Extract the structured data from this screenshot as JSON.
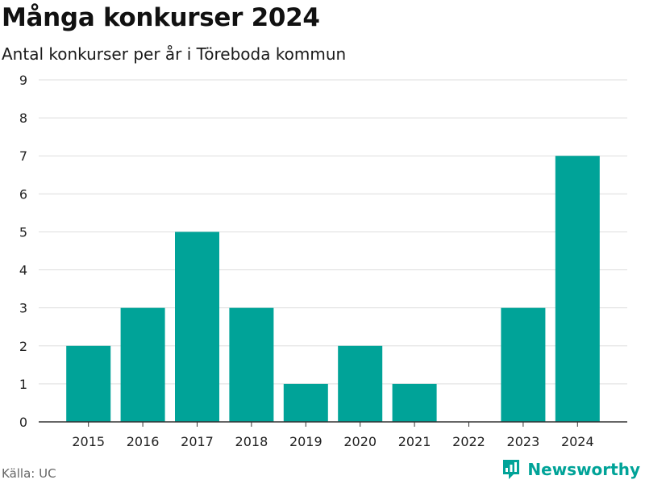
{
  "title": "Många konkurser 2024",
  "subtitle": "Antal konkurser per år i Töreboda kommun",
  "source": "Källa: UC",
  "brand": {
    "name": "Newsworthy",
    "icon": "newsworthy-logo-icon"
  },
  "colors": {
    "bar": "#00a398",
    "grid": "#dddddd",
    "axis": "#333333",
    "brand": "#00a398"
  },
  "chart_data": {
    "type": "bar",
    "categories": [
      "2015",
      "2016",
      "2017",
      "2018",
      "2019",
      "2020",
      "2021",
      "2022",
      "2023",
      "2024"
    ],
    "values": [
      2,
      3,
      5,
      3,
      1,
      2,
      1,
      0,
      3,
      7
    ],
    "ylim": [
      0,
      9
    ],
    "yticks": [
      0,
      1,
      2,
      3,
      4,
      5,
      6,
      7,
      8,
      9
    ],
    "grid": true,
    "legend": "none"
  }
}
